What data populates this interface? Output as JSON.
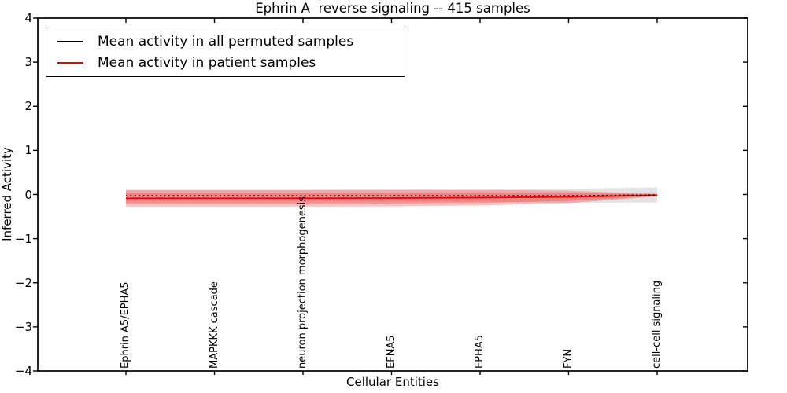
{
  "chart_data": {
    "type": "line",
    "title": "Ephrin A  reverse signaling -- 415 samples",
    "xlabel": "Cellular Entities",
    "ylabel": "Inferred Activity",
    "ylim": [
      -4,
      4
    ],
    "y_ticks": [
      4,
      3,
      2,
      1,
      0,
      -1,
      -2,
      -3,
      -4
    ],
    "grid": false,
    "legend_position": "upper left",
    "categories": [
      "Ephrin A5/EPHA5",
      "MAPKKK cascade",
      "neuron projection morphogenesis",
      "EFNA5",
      "EPHA5",
      "FYN",
      "cell-cell signaling"
    ],
    "series": [
      {
        "name": "Mean activity in all permuted samples",
        "color": "#000000",
        "plot_line_style": "dotted",
        "values": [
          -0.03,
          -0.03,
          -0.03,
          -0.03,
          -0.03,
          -0.03,
          -0.01
        ],
        "band_halfwidth": [
          0.13,
          0.13,
          0.13,
          0.13,
          0.13,
          0.16,
          0.17
        ],
        "band_color": "#000000",
        "band_opacity": 0.11
      },
      {
        "name": "Mean activity in patient samples",
        "color": "#ee0000",
        "plot_line_style": "solid",
        "values": [
          -0.085,
          -0.085,
          -0.085,
          -0.08,
          -0.07,
          -0.055,
          -0.015
        ],
        "band_halfwidth_outer": [
          0.19,
          0.19,
          0.19,
          0.19,
          0.18,
          0.14,
          0.03
        ],
        "band_halfwidth_inner": [
          0.125,
          0.125,
          0.125,
          0.125,
          0.12,
          0.09,
          0.02
        ],
        "band_color": "#ff0000",
        "band_opacity": 0.24
      }
    ]
  }
}
